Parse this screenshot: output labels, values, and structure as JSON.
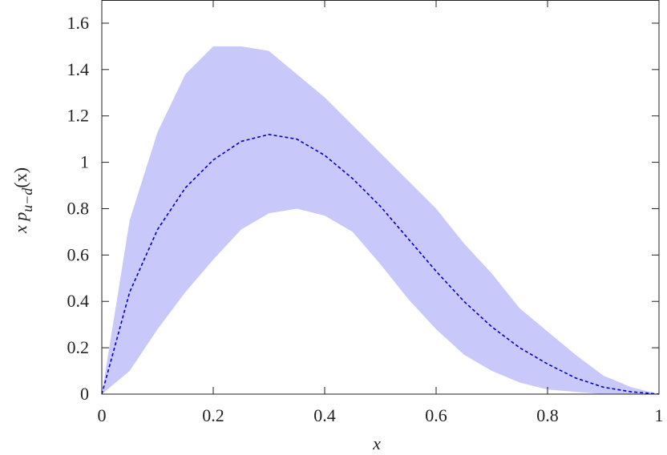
{
  "chart_data": {
    "type": "band-line",
    "x_label": "x",
    "y_label": {
      "text": "x p",
      "subscript": "u−d",
      "suffix": "(x)"
    },
    "x": [
      0,
      0.05,
      0.1,
      0.15,
      0.2,
      0.25,
      0.3,
      0.35,
      0.4,
      0.45,
      0.5,
      0.55,
      0.6,
      0.65,
      0.7,
      0.75,
      0.8,
      0.85,
      0.9,
      0.95,
      1
    ],
    "band": {
      "color": "#c8c8fa",
      "upper": [
        0,
        0.75,
        1.13,
        1.38,
        1.5,
        1.5,
        1.48,
        1.38,
        1.28,
        1.16,
        1.04,
        0.92,
        0.8,
        0.65,
        0.52,
        0.37,
        0.27,
        0.17,
        0.08,
        0.03,
        0
      ],
      "lower": [
        0,
        0.1,
        0.28,
        0.44,
        0.58,
        0.71,
        0.78,
        0.8,
        0.77,
        0.7,
        0.56,
        0.41,
        0.28,
        0.17,
        0.1,
        0.05,
        0.02,
        0.01,
        0,
        0,
        0
      ]
    },
    "line": {
      "color": "#0000cc",
      "style": "dashed",
      "values": [
        0,
        0.44,
        0.71,
        0.89,
        1.01,
        1.09,
        1.12,
        1.1,
        1.03,
        0.93,
        0.81,
        0.67,
        0.53,
        0.4,
        0.29,
        0.2,
        0.13,
        0.07,
        0.03,
        0.01,
        0
      ]
    },
    "xlim": [
      0,
      1
    ],
    "ylim": [
      0,
      1.7
    ],
    "xticks": [
      0,
      0.2,
      0.4,
      0.6,
      0.8,
      1
    ],
    "yticks": [
      0,
      0.2,
      0.4,
      0.6,
      0.8,
      1,
      1.2,
      1.4,
      1.6
    ]
  }
}
